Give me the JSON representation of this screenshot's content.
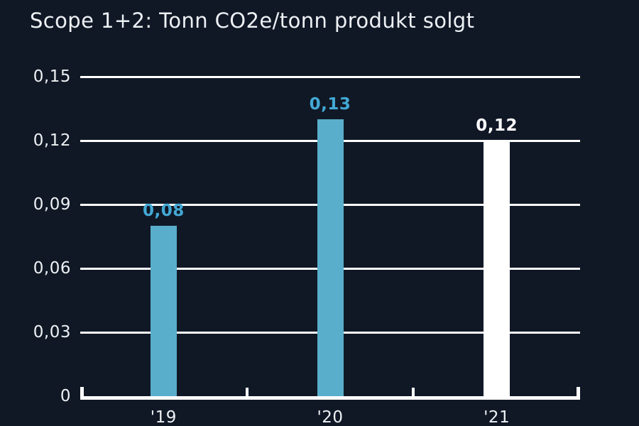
{
  "title": "Scope 1+2: Tonn CO2e/tonn produkt solgt",
  "colors": {
    "background": "#101826",
    "axis": "#ffffff",
    "text": "#eef1f4",
    "bar_blue": "#58aecb",
    "value_label_blue": "#43a9d5",
    "bar_white": "#ffffff",
    "value_label_white": "#ffffff"
  },
  "chart_data": {
    "type": "bar",
    "title": "Scope 1+2: Tonn CO2e/tonn produkt solgt",
    "categories": [
      "'19",
      "'20",
      "'21"
    ],
    "values": [
      0.08,
      0.13,
      0.12
    ],
    "value_labels": [
      "0,08",
      "0,13",
      "0,12"
    ],
    "bar_colors": [
      "#58aecb",
      "#58aecb",
      "#ffffff"
    ],
    "value_label_colors": [
      "#43a9d5",
      "#43a9d5",
      "#ffffff"
    ],
    "xlabel": "",
    "ylabel": "",
    "ylim": [
      0,
      0.15
    ],
    "ytick_values": [
      0,
      0.03,
      0.06,
      0.09,
      0.12,
      0.15
    ],
    "ytick_labels": [
      "0",
      "0,03",
      "0,06",
      "0,09",
      "0,12",
      "0,15"
    ],
    "grid": true,
    "gridline_color": "#ffffff",
    "legend": "none",
    "decimal_separator": ","
  }
}
